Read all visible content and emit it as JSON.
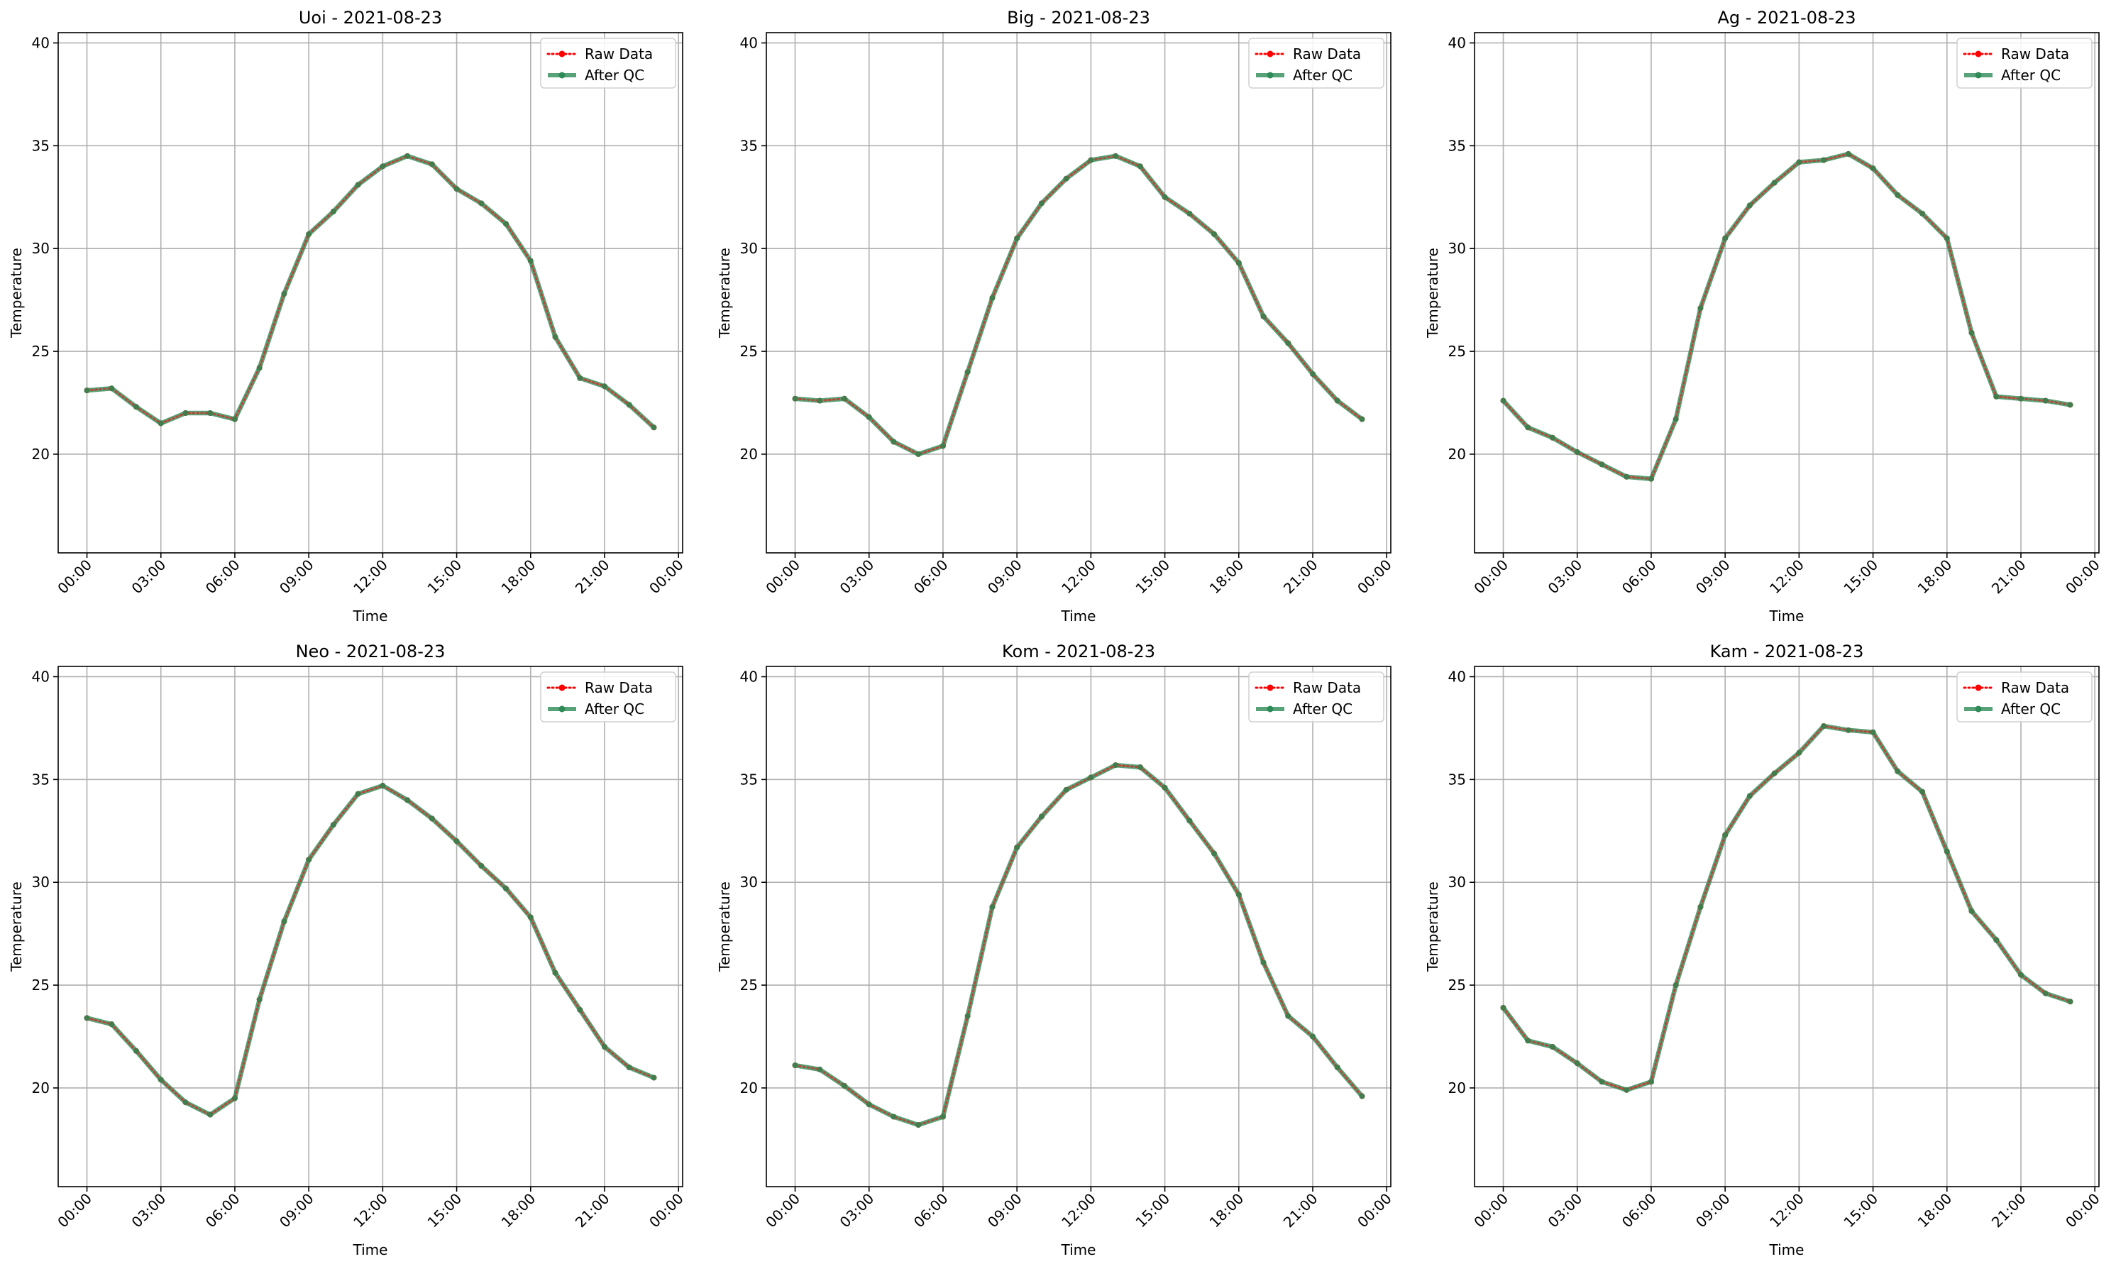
{
  "figure": {
    "legend_placement": "top-right",
    "grid": true
  },
  "chart_data": [
    {
      "type": "line",
      "title": "Uoi - 2021-08-23",
      "xlabel": "Time",
      "ylabel": "Temperature",
      "x": [
        "00:00",
        "01:00",
        "02:00",
        "03:00",
        "04:00",
        "05:00",
        "06:00",
        "07:00",
        "08:00",
        "09:00",
        "10:00",
        "11:00",
        "12:00",
        "13:00",
        "14:00",
        "15:00",
        "16:00",
        "17:00",
        "18:00",
        "19:00",
        "20:00",
        "21:00",
        "22:00",
        "23:00"
      ],
      "x_ticks": [
        "00:00",
        "03:00",
        "06:00",
        "09:00",
        "12:00",
        "15:00",
        "18:00",
        "21:00",
        "00:00"
      ],
      "xlim": [
        "2021-08-22 22:50",
        "2021-08-24 00:10"
      ],
      "ylim": [
        15.2,
        40.5
      ],
      "y_ticks": [
        20,
        25,
        30,
        35,
        40
      ],
      "series": [
        {
          "name": "Raw Data",
          "color": "#ff0000",
          "values": [
            23.1,
            23.2,
            22.3,
            21.5,
            22.0,
            22.0,
            21.7,
            24.2,
            27.8,
            30.7,
            31.8,
            33.1,
            34.0,
            34.5,
            34.1,
            32.9,
            32.2,
            31.2,
            29.4,
            25.7,
            23.7,
            23.3,
            22.4,
            21.3
          ]
        },
        {
          "name": "After QC",
          "color": "#2e8b57",
          "values": [
            23.1,
            23.2,
            22.3,
            21.5,
            22.0,
            22.0,
            21.7,
            24.2,
            27.8,
            30.7,
            31.8,
            33.1,
            34.0,
            34.5,
            34.1,
            32.9,
            32.2,
            31.2,
            29.4,
            25.7,
            23.7,
            23.3,
            22.4,
            21.3
          ]
        }
      ]
    },
    {
      "type": "line",
      "title": "Big - 2021-08-23",
      "xlabel": "Time",
      "ylabel": "Temperature",
      "x": [
        "00:00",
        "01:00",
        "02:00",
        "03:00",
        "04:00",
        "05:00",
        "06:00",
        "07:00",
        "08:00",
        "09:00",
        "10:00",
        "11:00",
        "12:00",
        "13:00",
        "14:00",
        "15:00",
        "16:00",
        "17:00",
        "18:00",
        "19:00",
        "20:00",
        "21:00",
        "22:00",
        "23:00"
      ],
      "x_ticks": [
        "00:00",
        "03:00",
        "06:00",
        "09:00",
        "12:00",
        "15:00",
        "18:00",
        "21:00",
        "00:00"
      ],
      "xlim": [
        "2021-08-22 22:50",
        "2021-08-24 00:10"
      ],
      "ylim": [
        15.2,
        40.5
      ],
      "y_ticks": [
        20,
        25,
        30,
        35,
        40
      ],
      "series": [
        {
          "name": "Raw Data",
          "color": "#ff0000",
          "values": [
            22.7,
            22.6,
            22.7,
            21.8,
            20.6,
            20.0,
            20.4,
            24.0,
            27.6,
            30.5,
            32.2,
            33.4,
            34.3,
            34.5,
            34.0,
            32.5,
            31.7,
            30.7,
            29.3,
            26.7,
            25.4,
            23.9,
            22.6,
            21.7
          ]
        },
        {
          "name": "After QC",
          "color": "#2e8b57",
          "values": [
            22.7,
            22.6,
            22.7,
            21.8,
            20.6,
            20.0,
            20.4,
            24.0,
            27.6,
            30.5,
            32.2,
            33.4,
            34.3,
            34.5,
            34.0,
            32.5,
            31.7,
            30.7,
            29.3,
            26.7,
            25.4,
            23.9,
            22.6,
            21.7
          ]
        }
      ]
    },
    {
      "type": "line",
      "title": "Ag - 2021-08-23",
      "xlabel": "Time",
      "ylabel": "Temperature",
      "x": [
        "00:00",
        "01:00",
        "02:00",
        "03:00",
        "04:00",
        "05:00",
        "06:00",
        "07:00",
        "08:00",
        "09:00",
        "10:00",
        "11:00",
        "12:00",
        "13:00",
        "14:00",
        "15:00",
        "16:00",
        "17:00",
        "18:00",
        "19:00",
        "20:00",
        "21:00",
        "22:00",
        "23:00"
      ],
      "x_ticks": [
        "00:00",
        "03:00",
        "06:00",
        "09:00",
        "12:00",
        "15:00",
        "18:00",
        "21:00",
        "00:00"
      ],
      "xlim": [
        "2021-08-22 22:50",
        "2021-08-24 00:10"
      ],
      "ylim": [
        15.2,
        40.5
      ],
      "y_ticks": [
        20,
        25,
        30,
        35,
        40
      ],
      "series": [
        {
          "name": "Raw Data",
          "color": "#ff0000",
          "values": [
            22.6,
            21.3,
            20.8,
            20.1,
            19.5,
            18.9,
            18.8,
            21.7,
            27.1,
            30.5,
            32.1,
            33.2,
            34.2,
            34.3,
            34.6,
            33.9,
            32.6,
            31.7,
            30.5,
            25.9,
            22.8,
            22.7,
            22.6,
            22.4
          ]
        },
        {
          "name": "After QC",
          "color": "#2e8b57",
          "values": [
            22.6,
            21.3,
            20.8,
            20.1,
            19.5,
            18.9,
            18.8,
            21.7,
            27.1,
            30.5,
            32.1,
            33.2,
            34.2,
            34.3,
            34.6,
            33.9,
            32.6,
            31.7,
            30.5,
            25.9,
            22.8,
            22.7,
            22.6,
            22.4
          ]
        }
      ]
    },
    {
      "type": "line",
      "title": "Neo - 2021-08-23",
      "xlabel": "Time",
      "ylabel": "Temperature",
      "x": [
        "00:00",
        "01:00",
        "02:00",
        "03:00",
        "04:00",
        "05:00",
        "06:00",
        "07:00",
        "08:00",
        "09:00",
        "10:00",
        "11:00",
        "12:00",
        "13:00",
        "14:00",
        "15:00",
        "16:00",
        "17:00",
        "18:00",
        "19:00",
        "20:00",
        "21:00",
        "22:00",
        "23:00"
      ],
      "x_ticks": [
        "00:00",
        "03:00",
        "06:00",
        "09:00",
        "12:00",
        "15:00",
        "18:00",
        "21:00",
        "00:00"
      ],
      "xlim": [
        "2021-08-22 22:50",
        "2021-08-24 00:10"
      ],
      "ylim": [
        15.2,
        40.5
      ],
      "y_ticks": [
        20,
        25,
        30,
        35,
        40
      ],
      "series": [
        {
          "name": "Raw Data",
          "color": "#ff0000",
          "values": [
            23.4,
            23.1,
            21.8,
            20.4,
            19.3,
            18.7,
            19.5,
            24.3,
            28.1,
            31.1,
            32.8,
            34.3,
            34.7,
            34.0,
            33.1,
            32.0,
            30.8,
            29.7,
            28.3,
            25.6,
            23.8,
            22.0,
            21.0,
            20.5
          ]
        },
        {
          "name": "After QC",
          "color": "#2e8b57",
          "values": [
            23.4,
            23.1,
            21.8,
            20.4,
            19.3,
            18.7,
            19.5,
            24.3,
            28.1,
            31.1,
            32.8,
            34.3,
            34.7,
            34.0,
            33.1,
            32.0,
            30.8,
            29.7,
            28.3,
            25.6,
            23.8,
            22.0,
            21.0,
            20.5
          ]
        }
      ]
    },
    {
      "type": "line",
      "title": "Kom - 2021-08-23",
      "xlabel": "Time",
      "ylabel": "Temperature",
      "x": [
        "00:00",
        "01:00",
        "02:00",
        "03:00",
        "04:00",
        "05:00",
        "06:00",
        "07:00",
        "08:00",
        "09:00",
        "10:00",
        "11:00",
        "12:00",
        "13:00",
        "14:00",
        "15:00",
        "16:00",
        "17:00",
        "18:00",
        "19:00",
        "20:00",
        "21:00",
        "22:00",
        "23:00"
      ],
      "x_ticks": [
        "00:00",
        "03:00",
        "06:00",
        "09:00",
        "12:00",
        "15:00",
        "18:00",
        "21:00",
        "00:00"
      ],
      "xlim": [
        "2021-08-22 22:50",
        "2021-08-24 00:10"
      ],
      "ylim": [
        15.2,
        40.5
      ],
      "y_ticks": [
        20,
        25,
        30,
        35,
        40
      ],
      "series": [
        {
          "name": "Raw Data",
          "color": "#ff0000",
          "values": [
            21.1,
            20.9,
            20.1,
            19.2,
            18.6,
            18.2,
            18.6,
            23.5,
            28.8,
            31.7,
            33.2,
            34.5,
            35.1,
            35.7,
            35.6,
            34.6,
            33.0,
            31.4,
            29.4,
            26.1,
            23.5,
            22.5,
            21.0,
            19.6
          ]
        },
        {
          "name": "After QC",
          "color": "#2e8b57",
          "values": [
            21.1,
            20.9,
            20.1,
            19.2,
            18.6,
            18.2,
            18.6,
            23.5,
            28.8,
            31.7,
            33.2,
            34.5,
            35.1,
            35.7,
            35.6,
            34.6,
            33.0,
            31.4,
            29.4,
            26.1,
            23.5,
            22.5,
            21.0,
            19.6
          ]
        }
      ]
    },
    {
      "type": "line",
      "title": "Kam - 2021-08-23",
      "xlabel": "Time",
      "ylabel": "Temperature",
      "x": [
        "00:00",
        "01:00",
        "02:00",
        "03:00",
        "04:00",
        "05:00",
        "06:00",
        "07:00",
        "08:00",
        "09:00",
        "10:00",
        "11:00",
        "12:00",
        "13:00",
        "14:00",
        "15:00",
        "16:00",
        "17:00",
        "18:00",
        "19:00",
        "20:00",
        "21:00",
        "22:00",
        "23:00"
      ],
      "x_ticks": [
        "00:00",
        "03:00",
        "06:00",
        "09:00",
        "12:00",
        "15:00",
        "18:00",
        "21:00",
        "00:00"
      ],
      "xlim": [
        "2021-08-22 22:50",
        "2021-08-24 00:10"
      ],
      "ylim": [
        15.2,
        40.5
      ],
      "y_ticks": [
        20,
        25,
        30,
        35,
        40
      ],
      "series": [
        {
          "name": "Raw Data",
          "color": "#ff0000",
          "values": [
            23.9,
            22.3,
            22.0,
            21.2,
            20.3,
            19.9,
            20.3,
            25.0,
            28.8,
            32.3,
            34.2,
            35.3,
            36.3,
            37.6,
            37.4,
            37.3,
            35.4,
            34.4,
            31.5,
            28.6,
            27.2,
            25.5,
            24.6,
            24.2
          ]
        },
        {
          "name": "After QC",
          "color": "#2e8b57",
          "values": [
            23.9,
            22.3,
            22.0,
            21.2,
            20.3,
            19.9,
            20.3,
            25.0,
            28.8,
            32.3,
            34.2,
            35.3,
            36.3,
            37.6,
            37.4,
            37.3,
            35.4,
            34.4,
            31.5,
            28.6,
            27.2,
            25.5,
            24.6,
            24.2
          ]
        }
      ]
    }
  ]
}
